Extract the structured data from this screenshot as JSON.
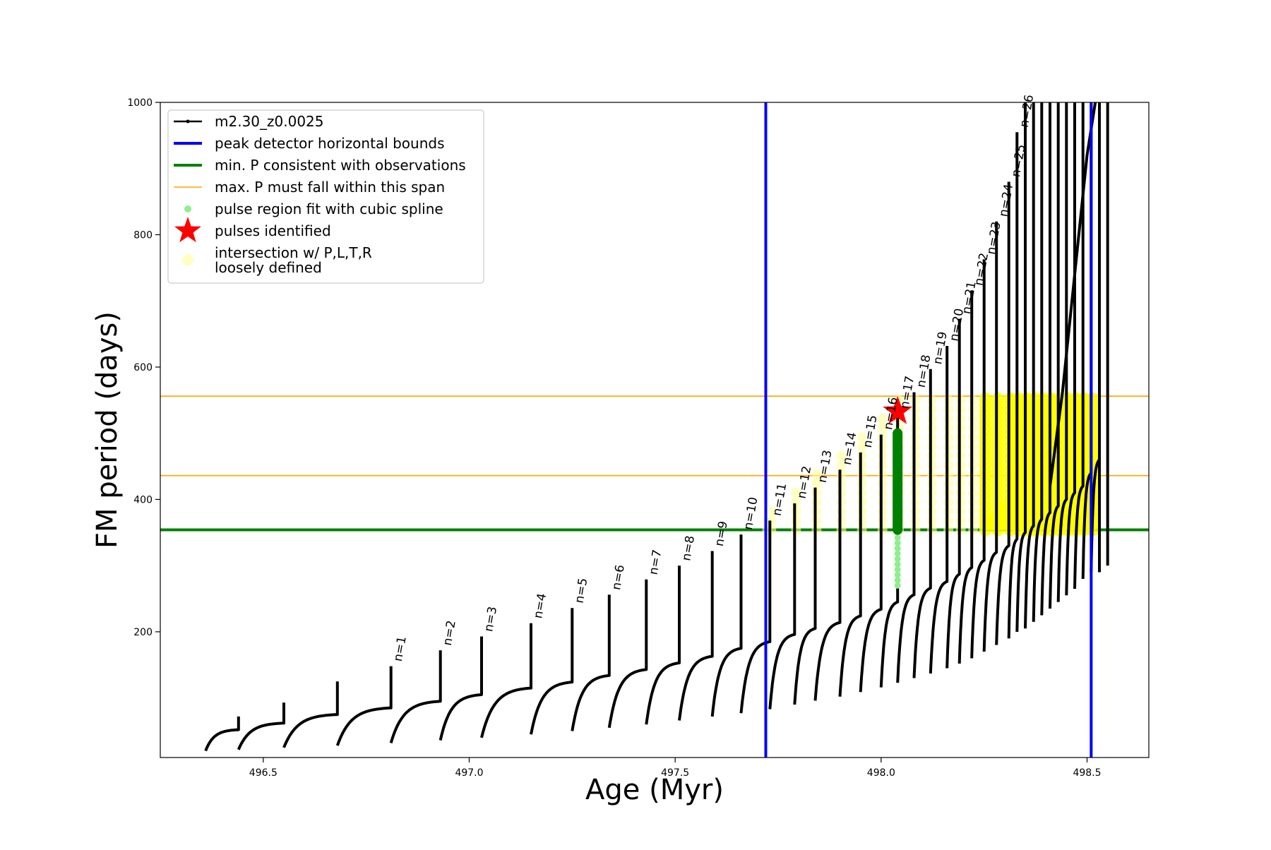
{
  "chart_data": {
    "type": "line",
    "title": "",
    "xlabel": "Age (Myr)",
    "ylabel": "FM period (days)",
    "xlim": [
      496.25,
      498.65
    ],
    "ylim": [
      10,
      1000
    ],
    "xticks": [
      496.5,
      497.0,
      497.5,
      498.0,
      498.5
    ],
    "xtick_labels": [
      "496.5",
      "497.0",
      "497.5",
      "498.0",
      "498.5"
    ],
    "yticks": [
      200,
      400,
      600,
      800,
      1000
    ],
    "ytick_labels": [
      "200",
      "400",
      "600",
      "800",
      "1000"
    ],
    "grid": false,
    "legend_position": "top-left",
    "legend": [
      {
        "label": "m2.30_z0.0025",
        "kind": "line-marker",
        "color": "#000000"
      },
      {
        "label": "peak detector horizontal bounds",
        "kind": "line",
        "color": "#0000ff"
      },
      {
        "label": "min. P consistent with observations",
        "kind": "line",
        "color": "#008000"
      },
      {
        "label": "max. P must fall within this span",
        "kind": "thin-line",
        "color": "#ffa500"
      },
      {
        "label": "pulse region fit with cubic spline",
        "kind": "dot",
        "color": "#90ee90"
      },
      {
        "label": "pulses identified",
        "kind": "star",
        "color": "#ff0000"
      },
      {
        "label": "intersection w/ P,L,T,R\nloosely defined",
        "kind": "soft-dot",
        "color": "#ffff99"
      }
    ],
    "vertical_lines": [
      {
        "x": 497.72,
        "color": "#0000ff"
      },
      {
        "x": 498.51,
        "color": "#0000ff"
      }
    ],
    "horizontal_lines": [
      {
        "y": 354,
        "color": "#008000",
        "role": "min P"
      },
      {
        "y": 436,
        "color": "#ffa500",
        "role": "max P lower"
      },
      {
        "y": 556,
        "color": "#ffa500",
        "role": "max P upper"
      }
    ],
    "pulses": [
      {
        "x0": 496.36,
        "x1": 496.44,
        "start": 20,
        "end": 52,
        "spike": 72
      },
      {
        "x0": 496.44,
        "x1": 496.55,
        "start": 22,
        "end": 62,
        "spike": 93
      },
      {
        "x0": 496.55,
        "x1": 496.68,
        "start": 25,
        "end": 75,
        "spike": 125
      },
      {
        "x0": 496.68,
        "x1": 496.81,
        "start": 28,
        "end": 85,
        "spike": 148,
        "label": "n=1"
      },
      {
        "x0": 496.81,
        "x1": 496.93,
        "start": 32,
        "end": 95,
        "spike": 172,
        "label": "n=2"
      },
      {
        "x0": 496.93,
        "x1": 497.03,
        "start": 36,
        "end": 105,
        "spike": 193,
        "label": "n=3"
      },
      {
        "x0": 497.03,
        "x1": 497.15,
        "start": 40,
        "end": 115,
        "spike": 213,
        "label": "n=4"
      },
      {
        "x0": 497.15,
        "x1": 497.25,
        "start": 45,
        "end": 124,
        "spike": 236,
        "label": "n=5"
      },
      {
        "x0": 497.25,
        "x1": 497.34,
        "start": 50,
        "end": 134,
        "spike": 256,
        "label": "n=6"
      },
      {
        "x0": 497.34,
        "x1": 497.43,
        "start": 55,
        "end": 143,
        "spike": 279,
        "label": "n=7"
      },
      {
        "x0": 497.43,
        "x1": 497.51,
        "start": 60,
        "end": 153,
        "spike": 300,
        "label": "n=8"
      },
      {
        "x0": 497.51,
        "x1": 497.59,
        "start": 66,
        "end": 163,
        "spike": 322,
        "label": "n=9"
      },
      {
        "x0": 497.59,
        "x1": 497.66,
        "start": 72,
        "end": 175,
        "spike": 347,
        "label": "n=10"
      },
      {
        "x0": 497.66,
        "x1": 497.73,
        "start": 77,
        "end": 185,
        "spike": 368,
        "label": "n=11"
      },
      {
        "x0": 497.73,
        "x1": 497.79,
        "start": 83,
        "end": 196,
        "spike": 394,
        "label": "n=12"
      },
      {
        "x0": 497.79,
        "x1": 497.84,
        "start": 90,
        "end": 205,
        "spike": 418,
        "label": "n=13"
      },
      {
        "x0": 497.84,
        "x1": 497.9,
        "start": 96,
        "end": 214,
        "spike": 445,
        "label": "n=14"
      },
      {
        "x0": 497.9,
        "x1": 497.95,
        "start": 102,
        "end": 224,
        "spike": 471,
        "label": "n=15"
      },
      {
        "x0": 497.95,
        "x1": 498.0,
        "start": 109,
        "end": 234,
        "spike": 498,
        "label": "n=16"
      },
      {
        "x0": 498.0,
        "x1": 498.04,
        "start": 116,
        "end": 245,
        "spike": 530,
        "label": "n=17"
      },
      {
        "x0": 498.04,
        "x1": 498.08,
        "start": 123,
        "end": 256,
        "spike": 562,
        "label": "n=18"
      },
      {
        "x0": 498.08,
        "x1": 498.12,
        "start": 130,
        "end": 266,
        "spike": 597,
        "label": "n=19"
      },
      {
        "x0": 498.12,
        "x1": 498.16,
        "start": 137,
        "end": 276,
        "spike": 632,
        "label": "n=20"
      },
      {
        "x0": 498.16,
        "x1": 498.19,
        "start": 145,
        "end": 287,
        "spike": 673,
        "label": "n=21"
      },
      {
        "x0": 498.19,
        "x1": 498.22,
        "start": 152,
        "end": 297,
        "spike": 716,
        "label": "n=22"
      },
      {
        "x0": 498.22,
        "x1": 498.25,
        "start": 160,
        "end": 308,
        "spike": 763,
        "label": "n=23"
      },
      {
        "x0": 498.25,
        "x1": 498.28,
        "start": 170,
        "end": 320,
        "spike": 820,
        "label": "n=24"
      },
      {
        "x0": 498.28,
        "x1": 498.31,
        "start": 180,
        "end": 330,
        "spike": 880,
        "label": "n=25"
      },
      {
        "x0": 498.31,
        "x1": 498.33,
        "start": 190,
        "end": 340,
        "spike": 955,
        "label": "n=26"
      },
      {
        "x0": 498.33,
        "x1": 498.35,
        "start": 200,
        "end": 350,
        "spike": 1000
      },
      {
        "x0": 498.35,
        "x1": 498.37,
        "start": 205,
        "end": 360,
        "spike": 1000
      },
      {
        "x0": 498.37,
        "x1": 498.39,
        "start": 215,
        "end": 370,
        "spike": 1000
      },
      {
        "x0": 498.39,
        "x1": 498.41,
        "start": 225,
        "end": 380,
        "spike": 1000
      },
      {
        "x0": 498.41,
        "x1": 498.43,
        "start": 235,
        "end": 390,
        "spike": 1000
      },
      {
        "x0": 498.43,
        "x1": 498.45,
        "start": 245,
        "end": 400,
        "spike": 1000
      },
      {
        "x0": 498.45,
        "x1": 498.47,
        "start": 255,
        "end": 410,
        "spike": 1000
      },
      {
        "x0": 498.47,
        "x1": 498.49,
        "start": 265,
        "end": 420,
        "spike": 1000
      },
      {
        "x0": 498.49,
        "x1": 498.51,
        "start": 280,
        "end": 440,
        "spike": 1000
      },
      {
        "x0": 498.51,
        "x1": 498.53,
        "start": 290,
        "end": 460,
        "spike": 1000
      }
    ],
    "steep_branch": {
      "x": [
        498.41,
        498.44,
        498.47,
        498.5,
        498.52
      ],
      "y": [
        420,
        560,
        740,
        920,
        1000
      ]
    },
    "tail_spikes": [
      {
        "x": 498.53,
        "low": 290,
        "high": 1000
      },
      {
        "x": 498.55,
        "low": 300,
        "high": 1000
      }
    ],
    "pulse_spline_fit": {
      "x": 498.04,
      "y_min": 270,
      "y_max": 505
    },
    "pulse_detected_green": {
      "x": 498.04,
      "y_min": 354,
      "y_max": 500
    },
    "pulses_identified": [
      {
        "x": 498.04,
        "y": 533
      }
    ],
    "intersection_loosely_defined": {
      "x_range": [
        497.72,
        498.53
      ],
      "y_range": [
        354,
        556
      ]
    }
  }
}
